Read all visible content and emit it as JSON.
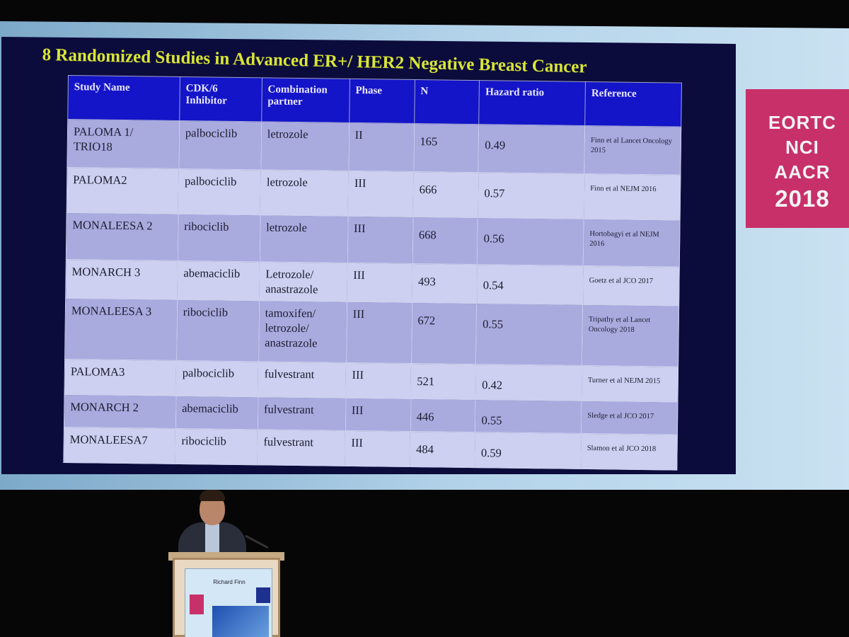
{
  "slide": {
    "title": "8 Randomized Studies in Advanced ER+/ HER2 Negative Breast Cancer",
    "columns": [
      "Study Name",
      "CDK/6 Inhibitor",
      "Combination partner",
      "Phase",
      "N",
      "Hazard ratio",
      "Reference"
    ],
    "rows": [
      {
        "study": "PALOMA 1/ TRIO18",
        "inhibitor": "palbociclib",
        "partner": "letrozole",
        "phase": "II",
        "n": "165",
        "hr": "0.49",
        "reference": "Finn et al Lancet Oncology 2015"
      },
      {
        "study": "PALOMA2",
        "inhibitor": "palbociclib",
        "partner": "letrozole",
        "phase": "III",
        "n": "666",
        "hr": "0.57",
        "reference": "Finn et al NEJM 2016"
      },
      {
        "study": "MONALEESA 2",
        "inhibitor": "ribociclib",
        "partner": "letrozole",
        "phase": "III",
        "n": "668",
        "hr": "0.56",
        "reference": "Hortobagyi et al NEJM 2016"
      },
      {
        "study": "MONARCH 3",
        "inhibitor": "abemaciclib",
        "partner": "Letrozole/ anastrazole",
        "phase": "III",
        "n": "493",
        "hr": "0.54",
        "reference": "Goetz et al JCO 2017"
      },
      {
        "study": "MONALEESA 3",
        "inhibitor": "ribociclib",
        "partner": "tamoxifen/ letrozole/ anastrazole",
        "phase": "III",
        "n": "672",
        "hr": "0.55",
        "reference": "Tripathy et al Lancet Oncology 2018"
      },
      {
        "study": "PALOMA3",
        "inhibitor": "palbociclib",
        "partner": "fulvestrant",
        "phase": "III",
        "n": "521",
        "hr": "0.42",
        "reference": "Turner et al NEJM 2015"
      },
      {
        "study": "MONARCH 2",
        "inhibitor": "abemaciclib",
        "partner": "fulvestrant",
        "phase": "III",
        "n": "446",
        "hr": "0.55",
        "reference": "Sledge et al JCO 2017"
      },
      {
        "study": "MONALEESA7",
        "inhibitor": "ribociclib",
        "partner": "fulvestrant",
        "phase": "III",
        "n": "484",
        "hr": "0.59",
        "reference": "Slamon et al JCO 2018"
      }
    ]
  },
  "logo": {
    "line1": "EORTC",
    "line2": "NCI",
    "line3": "AACR",
    "line4": "2018"
  },
  "podium": {
    "name": "Richard Finn"
  },
  "colors": {
    "header": "#1414c8",
    "title": "#d9e634",
    "row_odd": "#a9abdf",
    "row_even": "#cdd0f0",
    "logo": "#c8306a"
  }
}
